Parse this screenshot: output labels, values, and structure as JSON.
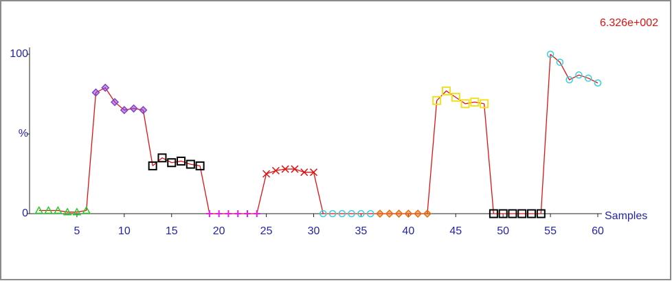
{
  "chart_data": {
    "type": "line",
    "corner_label": "6.326e+002",
    "x_label": "Samples",
    "xlim": [
      0,
      60
    ],
    "ylim": [
      0,
      100
    ],
    "xticks": [
      5,
      10,
      15,
      20,
      25,
      30,
      35,
      40,
      45,
      50,
      55,
      60
    ],
    "yticks": [
      0,
      {
        "value": 50,
        "label": "%"
      },
      100
    ],
    "line_color": "#e01010",
    "series": [
      {
        "color": "#22cc22",
        "marker": "triangle",
        "x": [
          1,
          2,
          3,
          4,
          5,
          6
        ],
        "values": [
          2,
          2,
          2,
          1,
          1,
          2
        ]
      },
      {
        "color": "#8040d0",
        "marker": "diamond",
        "x": [
          7,
          8,
          9,
          10,
          11,
          12
        ],
        "values": [
          76,
          79,
          70,
          65,
          66,
          65
        ]
      },
      {
        "color": "#000000",
        "marker": "square",
        "x": [
          13,
          14,
          15,
          16,
          17,
          18
        ],
        "values": [
          30,
          35,
          32,
          33,
          31,
          30
        ]
      },
      {
        "color": "#e020e0",
        "marker": "plus",
        "x": [
          19,
          20,
          21,
          22,
          23,
          24
        ],
        "values": [
          0,
          0,
          0,
          0,
          0,
          0
        ]
      },
      {
        "color": "#e01010",
        "marker": "cross",
        "x": [
          25,
          26,
          27,
          28,
          29,
          30
        ],
        "values": [
          25,
          27,
          28,
          28,
          26,
          26
        ]
      },
      {
        "color": "#30d0e0",
        "marker": "circle",
        "x": [
          31,
          32,
          33,
          34,
          35,
          36
        ],
        "values": [
          0,
          0,
          0,
          0,
          0,
          0
        ]
      },
      {
        "color": "#e07010",
        "marker": "diamond",
        "x": [
          37,
          38,
          39,
          40,
          41,
          42
        ],
        "values": [
          0,
          0,
          0,
          0,
          0,
          0
        ]
      },
      {
        "color": "#f0e020",
        "marker": "square",
        "x": [
          43,
          44,
          45,
          46,
          47,
          48
        ],
        "values": [
          71,
          77,
          73,
          69,
          70,
          69
        ]
      },
      {
        "color": "#000000",
        "marker": "square",
        "x": [
          49,
          50,
          51,
          52,
          53,
          54
        ],
        "values": [
          0,
          0,
          0,
          0,
          0,
          0
        ]
      },
      {
        "color": "#30d0e0",
        "marker": "circle",
        "x": [
          55,
          56,
          57,
          58,
          59,
          60
        ],
        "values": [
          100,
          95,
          84,
          87,
          85,
          82
        ]
      }
    ]
  }
}
